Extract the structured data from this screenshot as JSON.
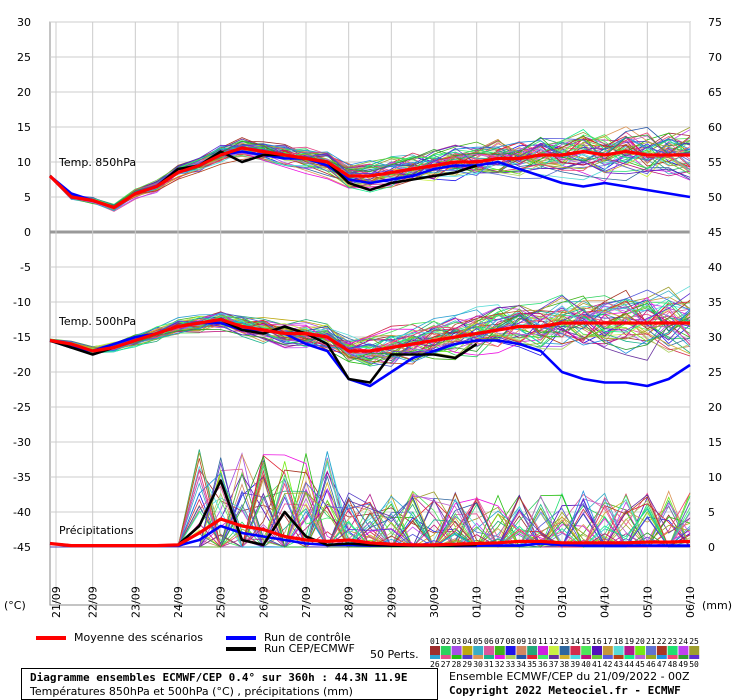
{
  "chart_data": {
    "type": "line",
    "title": "Diagramme ensembles ECMWF/CEP 0.4° sur 360h : 44.3N 11.9E",
    "subtitle": "Températures 850hPa et 500hPa (°C) , précipitations (mm)",
    "left_axis_label": "(°C)",
    "right_axis_label": "(mm)",
    "left_ticks": [
      30,
      25,
      20,
      15,
      10,
      5,
      0,
      -5,
      -10,
      -15,
      -20,
      -25,
      -30,
      -35,
      -40,
      -45
    ],
    "right_ticks": [
      75,
      70,
      65,
      60,
      55,
      50,
      45,
      40,
      35,
      30,
      25,
      20,
      15,
      10,
      5,
      0
    ],
    "x_labels": [
      "21/09",
      "22/09",
      "23/09",
      "24/09",
      "25/09",
      "26/09",
      "27/09",
      "28/09",
      "29/09",
      "30/09",
      "01/10",
      "02/10",
      "03/10",
      "04/10",
      "05/10",
      "06/10"
    ],
    "panel_labels": {
      "t850": "Temp. 850hPa",
      "t500": "Temp. 500hPa",
      "precip": "Précipitations"
    },
    "t850_hours": [
      0,
      12,
      24,
      36,
      48,
      60,
      72,
      84,
      96,
      108,
      120,
      132,
      144,
      156,
      168,
      180,
      192,
      204,
      216,
      228,
      240,
      252,
      264,
      276,
      288,
      300,
      312,
      324,
      336,
      348,
      360
    ],
    "series": [
      {
        "name": "Moyenne des scénarios",
        "color": "#ff0000",
        "t850": [
          8,
          5,
          4.5,
          3.5,
          5.5,
          6.5,
          8.5,
          9.5,
          11,
          12,
          11.5,
          11,
          10.5,
          10,
          8,
          8,
          8.5,
          9,
          9.5,
          10,
          10,
          10.5,
          10.5,
          11,
          11,
          11.5,
          11,
          11.5,
          11,
          11,
          11
        ],
        "t500": [
          -15.5,
          -16,
          -17,
          -16.5,
          -15.5,
          -14.5,
          -13.5,
          -13,
          -12.5,
          -13.5,
          -14,
          -14.5,
          -14.5,
          -15,
          -17,
          -17,
          -16.5,
          -16,
          -15.5,
          -15,
          -14.5,
          -14,
          -13.5,
          -13.5,
          -13,
          -13,
          -13,
          -13,
          -13,
          -13,
          -13
        ],
        "precip": [
          0.5,
          0.2,
          0.2,
          0.2,
          0.2,
          0.2,
          0.3,
          2,
          4,
          3,
          2.5,
          1.5,
          1,
          0.8,
          1,
          0.6,
          0.4,
          0.3,
          0.3,
          0.4,
          0.5,
          0.6,
          0.8,
          0.8,
          0.6,
          0.6,
          0.6,
          0.6,
          0.7,
          0.7,
          0.8
        ]
      },
      {
        "name": "Run de contrôle",
        "color": "#0000ff",
        "t850": [
          8,
          5.5,
          4.5,
          3.5,
          5.5,
          6.5,
          8.5,
          9.5,
          11,
          11.5,
          11,
          10.5,
          10.5,
          9.5,
          7.5,
          7,
          7.5,
          8,
          9,
          9.5,
          9.5,
          10,
          9,
          8,
          7,
          6.5,
          7,
          6.5,
          6,
          5.5,
          5
        ],
        "t500": [
          -15.5,
          -16.5,
          -17,
          -16,
          -15,
          -14.5,
          -13.5,
          -13,
          -13,
          -14,
          -14,
          -14.5,
          -16,
          -17,
          -21,
          -22,
          -20,
          -18,
          -17,
          -16,
          -15.5,
          -15.5,
          -16,
          -17,
          -20,
          -21,
          -21.5,
          -21.5,
          -22,
          -21,
          -19
        ],
        "precip": [
          0.5,
          0.2,
          0.2,
          0.2,
          0.2,
          0.2,
          0.2,
          1,
          3,
          2,
          1.5,
          1,
          0.5,
          0.3,
          0.3,
          0.2,
          0.2,
          0.2,
          0.2,
          0.2,
          0.2,
          0.2,
          0.2,
          0.5,
          0.3,
          0.2,
          0.2,
          0.2,
          0.2,
          0.2,
          0.2
        ]
      },
      {
        "name": "Run CEP/ECMWF",
        "color": "#000000",
        "t850": [
          8,
          5,
          4.5,
          3.5,
          5.5,
          6.5,
          9,
          9.5,
          11.5,
          10,
          11,
          11,
          10.5,
          10,
          7,
          6,
          7,
          7.5,
          8,
          8.5,
          9.5
        ],
        "t500": [
          -15.5,
          -16.5,
          -17.5,
          -16.5,
          -15.5,
          -14.5,
          -13.5,
          -13,
          -12.5,
          -14,
          -14.5,
          -13.5,
          -14.5,
          -16,
          -21,
          -21.5,
          -17.5,
          -17.5,
          -17.5,
          -18,
          -16
        ],
        "precip": [
          0.5,
          0.2,
          0.2,
          0.2,
          0.2,
          0.2,
          0.3,
          3,
          9.5,
          1,
          0.3,
          5,
          1.5,
          0.3,
          0.5,
          0.3,
          0.2,
          0.2,
          0.2,
          0.2,
          0.3
        ]
      }
    ],
    "grid": true
  },
  "legend": {
    "mean": "Moyenne des scénarios",
    "control": "Run de contrôle",
    "oper": "Run CEP/ECMWF",
    "perts": "50 Perts.",
    "pert_numbers_1": [
      "01",
      "02",
      "03",
      "04",
      "05",
      "06",
      "07",
      "08",
      "09",
      "10",
      "11",
      "12",
      "13",
      "14",
      "15",
      "16",
      "17",
      "18",
      "19",
      "20",
      "21",
      "22",
      "23",
      "24",
      "25"
    ],
    "pert_numbers_2": [
      "26",
      "27",
      "28",
      "29",
      "30",
      "31",
      "32",
      "33",
      "34",
      "35",
      "36",
      "37",
      "38",
      "39",
      "40",
      "41",
      "42",
      "43",
      "44",
      "45",
      "46",
      "47",
      "48",
      "49",
      "50"
    ]
  },
  "footer": {
    "title": "Diagramme ensembles ECMWF/CEP 0.4° sur 360h : 44.3N 11.9E",
    "subtitle": "Températures 850hPa et 500hPa (°C) , précipitations (mm)",
    "run": "Ensemble ECMWF/CEP du 21/09/2022 - 00Z",
    "copyright": "Copyright 2022 Meteociel.fr - ECMWF"
  }
}
